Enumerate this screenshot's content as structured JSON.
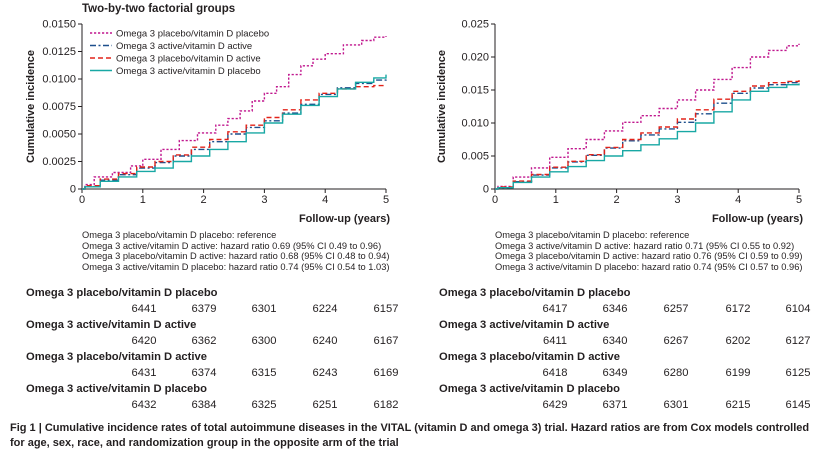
{
  "chart_data": [
    {
      "type": "line",
      "step": true,
      "title": "Two-by-two factorial groups",
      "xlabel": "Follow-up (years)",
      "ylabel": "Cumulative incidence",
      "xlim": [
        0,
        5
      ],
      "ylim": [
        0,
        0.015
      ],
      "x_ticks": [
        "0",
        "1",
        "2",
        "3",
        "4",
        "5"
      ],
      "y_ticks": [
        "0",
        "0.0025",
        "0.0050",
        "0.0075",
        "0.0100",
        "0.0125",
        "0.0150"
      ],
      "legend_position": "top-right",
      "series": [
        {
          "name": "Omega 3 placebo/vitamin D placebo",
          "color": "#c0178e",
          "dash": "dotted",
          "x": [
            0,
            0.05,
            0.2,
            0.5,
            0.8,
            1.0,
            1.3,
            1.6,
            1.9,
            2.2,
            2.4,
            2.6,
            2.8,
            3.0,
            3.2,
            3.4,
            3.6,
            3.8,
            4.0,
            4.3,
            4.6,
            4.8,
            5.0
          ],
          "y": [
            0,
            0.0004,
            0.0011,
            0.0015,
            0.0021,
            0.0027,
            0.0036,
            0.0044,
            0.0051,
            0.0058,
            0.0064,
            0.0071,
            0.008,
            0.0087,
            0.0093,
            0.0104,
            0.0112,
            0.0118,
            0.0123,
            0.0131,
            0.0135,
            0.0138,
            0.0139
          ]
        },
        {
          "name": "Omega 3 active/vitamin D active",
          "color": "#1d4f8c",
          "dash": "dashdot",
          "x": [
            0,
            0.05,
            0.3,
            0.6,
            0.9,
            1.2,
            1.5,
            1.8,
            2.1,
            2.4,
            2.7,
            3.0,
            3.3,
            3.6,
            3.9,
            4.2,
            4.5,
            4.8,
            5.0
          ],
          "y": [
            0,
            0.0002,
            0.0008,
            0.0013,
            0.0019,
            0.0024,
            0.003,
            0.0036,
            0.0043,
            0.005,
            0.0056,
            0.0062,
            0.0069,
            0.0077,
            0.0086,
            0.0092,
            0.0096,
            0.0099,
            0.0101
          ]
        },
        {
          "name": "Omega 3 placebo/vitamin D active",
          "color": "#e2231a",
          "dash": "dashed",
          "x": [
            0,
            0.05,
            0.3,
            0.6,
            0.9,
            1.2,
            1.5,
            1.8,
            2.1,
            2.4,
            2.7,
            3.0,
            3.3,
            3.6,
            3.9,
            4.2,
            4.5,
            4.8,
            5.0
          ],
          "y": [
            0,
            0.0003,
            0.0009,
            0.0014,
            0.002,
            0.0025,
            0.0031,
            0.0038,
            0.0045,
            0.0052,
            0.0058,
            0.0065,
            0.0072,
            0.0081,
            0.0087,
            0.0091,
            0.0093,
            0.0094,
            0.0094
          ]
        },
        {
          "name": "Omega 3 active/vitamin D placebo",
          "color": "#18a8a4",
          "dash": "solid",
          "x": [
            0,
            0.05,
            0.3,
            0.6,
            0.9,
            1.2,
            1.5,
            1.8,
            2.1,
            2.4,
            2.7,
            3.0,
            3.3,
            3.6,
            3.9,
            4.2,
            4.5,
            4.8,
            5.0
          ],
          "y": [
            0,
            0.0002,
            0.0007,
            0.0011,
            0.0016,
            0.0019,
            0.0025,
            0.003,
            0.0036,
            0.0043,
            0.0051,
            0.006,
            0.0068,
            0.0076,
            0.0084,
            0.0091,
            0.0097,
            0.0101,
            0.0104
          ]
        }
      ],
      "hazard_ratios": [
        "Omega 3 placebo/vitamin D placebo: reference",
        "Omega 3 active/vitamin D active: hazard ratio 0.69 (95% CI 0.49 to 0.96)",
        "Omega 3 placebo/vitamin D active: hazard ratio 0.68 (95% CI 0.48 to 0.94)",
        "Omega 3 active/vitamin D placebo: hazard ratio 0.74 (95% CI 0.54 to 1.03)"
      ],
      "at_risk": [
        {
          "name": "Omega 3 placebo/vitamin D placebo",
          "values": [
            "6441",
            "6379",
            "6301",
            "6224",
            "6157"
          ]
        },
        {
          "name": "Omega 3 active/vitamin D active",
          "values": [
            "6420",
            "6362",
            "6300",
            "6240",
            "6167"
          ]
        },
        {
          "name": "Omega 3 placebo/vitamin D active",
          "values": [
            "6431",
            "6374",
            "6315",
            "6243",
            "6169"
          ]
        },
        {
          "name": "Omega 3 active/vitamin D placebo",
          "values": [
            "6432",
            "6384",
            "6325",
            "6251",
            "6182"
          ]
        }
      ]
    },
    {
      "type": "line",
      "step": true,
      "title": "",
      "xlabel": "Follow-up (years)",
      "ylabel": "Cumulative incidence",
      "xlim": [
        0,
        5
      ],
      "ylim": [
        0,
        0.025
      ],
      "x_ticks": [
        "0",
        "1",
        "2",
        "3",
        "4",
        "5"
      ],
      "y_ticks": [
        "0",
        "0.005",
        "0.010",
        "0.015",
        "0.020",
        "0.025"
      ],
      "series": [
        {
          "name": "Omega 3 placebo/vitamin D placebo",
          "color": "#c0178e",
          "dash": "dotted",
          "x": [
            0,
            0.05,
            0.3,
            0.6,
            0.9,
            1.2,
            1.5,
            1.8,
            2.1,
            2.4,
            2.7,
            3.0,
            3.3,
            3.6,
            3.9,
            4.2,
            4.5,
            4.8,
            5.0
          ],
          "y": [
            0,
            0.0004,
            0.0018,
            0.0032,
            0.0048,
            0.0061,
            0.0075,
            0.0088,
            0.0101,
            0.0111,
            0.0122,
            0.0135,
            0.015,
            0.0166,
            0.0184,
            0.02,
            0.021,
            0.0217,
            0.022
          ]
        },
        {
          "name": "Omega 3 active/vitamin D active",
          "color": "#1d4f8c",
          "dash": "dashdot",
          "x": [
            0,
            0.05,
            0.3,
            0.6,
            0.9,
            1.2,
            1.5,
            1.8,
            2.1,
            2.4,
            2.7,
            3.0,
            3.3,
            3.6,
            3.9,
            4.2,
            4.5,
            4.8,
            5.0
          ],
          "y": [
            0,
            0.0002,
            0.0011,
            0.0021,
            0.0032,
            0.0041,
            0.0051,
            0.0062,
            0.0073,
            0.0082,
            0.0091,
            0.0101,
            0.0114,
            0.013,
            0.0145,
            0.0153,
            0.0158,
            0.0161,
            0.0162
          ]
        },
        {
          "name": "Omega 3 placebo/vitamin D active",
          "color": "#e2231a",
          "dash": "dashed",
          "x": [
            0,
            0.05,
            0.3,
            0.6,
            0.9,
            1.2,
            1.5,
            1.8,
            2.1,
            2.4,
            2.7,
            3.0,
            3.3,
            3.6,
            3.9,
            4.2,
            4.5,
            4.8,
            5.0
          ],
          "y": [
            0,
            0.0003,
            0.0012,
            0.0022,
            0.0033,
            0.0042,
            0.0052,
            0.0063,
            0.0075,
            0.0085,
            0.0094,
            0.0106,
            0.012,
            0.0136,
            0.0148,
            0.0156,
            0.0161,
            0.0163,
            0.0165
          ]
        },
        {
          "name": "Omega 3 active/vitamin D placebo",
          "color": "#18a8a4",
          "dash": "solid",
          "x": [
            0,
            0.05,
            0.3,
            0.6,
            0.9,
            1.2,
            1.5,
            1.8,
            2.1,
            2.4,
            2.7,
            3.0,
            3.3,
            3.6,
            3.9,
            4.2,
            4.5,
            4.8,
            5.0
          ],
          "y": [
            0,
            0.0002,
            0.001,
            0.0018,
            0.0026,
            0.0034,
            0.0043,
            0.005,
            0.0058,
            0.0067,
            0.0076,
            0.0087,
            0.01,
            0.0117,
            0.0135,
            0.0148,
            0.0154,
            0.0158,
            0.016
          ]
        }
      ],
      "hazard_ratios": [
        "Omega 3 placebo/vitamin D placebo: reference",
        "Omega 3 active/vitamin D active: hazard ratio 0.71 (95% CI 0.55 to 0.92)",
        "Omega 3 placebo/vitamin D active: hazard ratio 0.76 (95% CI 0.59 to 0.99)",
        "Omega 3 active/vitamin D placebo: hazard ratio 0.74 (95% CI 0.57 to 0.96)"
      ],
      "at_risk": [
        {
          "name": "Omega 3 placebo/vitamin D placebo",
          "values": [
            "6417",
            "6346",
            "6257",
            "6172",
            "6104"
          ]
        },
        {
          "name": "Omega 3 active/vitamin D active",
          "values": [
            "6411",
            "6340",
            "6267",
            "6202",
            "6127"
          ]
        },
        {
          "name": "Omega 3 placebo/vitamin D active",
          "values": [
            "6418",
            "6349",
            "6280",
            "6199",
            "6125"
          ]
        },
        {
          "name": "Omega 3 active/vitamin D placebo",
          "values": [
            "6429",
            "6371",
            "6301",
            "6215",
            "6145"
          ]
        }
      ]
    }
  ],
  "caption": "Fig 1 | Cumulative incidence rates of total autoimmune diseases in the VITAL (vitamin D and omega 3) trial. Hazard ratios are from Cox models controlled for age, sex, race, and randomization group in the opposite arm of the trial"
}
